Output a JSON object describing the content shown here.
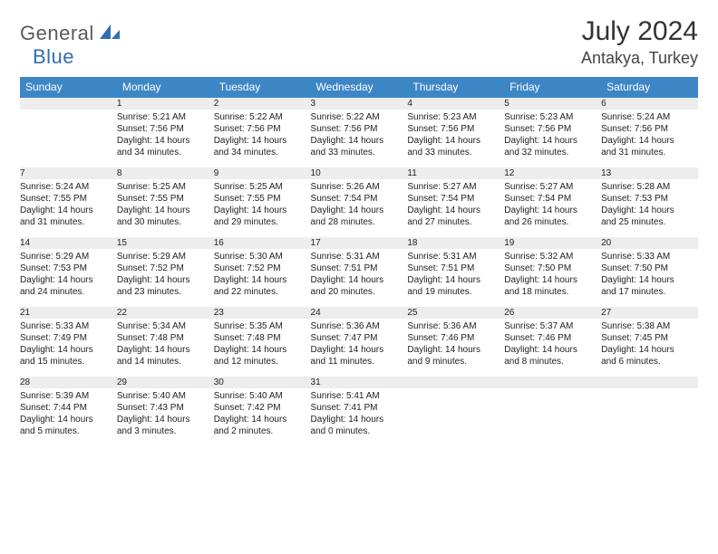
{
  "brand": {
    "general": "General",
    "blue": "Blue"
  },
  "header": {
    "month_title": "July 2024",
    "location": "Antakya, Turkey"
  },
  "colors": {
    "header_bg": "#3d86c6",
    "header_text": "#ffffff",
    "daynum_bg": "#ededed",
    "rule": "#3d86c6",
    "brand_blue": "#2f6fb3",
    "brand_gray": "#5a5a5a"
  },
  "weekdays": [
    "Sunday",
    "Monday",
    "Tuesday",
    "Wednesday",
    "Thursday",
    "Friday",
    "Saturday"
  ],
  "weeks": [
    {
      "nums": [
        "",
        "1",
        "2",
        "3",
        "4",
        "5",
        "6"
      ],
      "cells": [
        {
          "sunrise": "",
          "sunset": "",
          "daylight1": "",
          "daylight2": ""
        },
        {
          "sunrise": "Sunrise: 5:21 AM",
          "sunset": "Sunset: 7:56 PM",
          "daylight1": "Daylight: 14 hours",
          "daylight2": "and 34 minutes."
        },
        {
          "sunrise": "Sunrise: 5:22 AM",
          "sunset": "Sunset: 7:56 PM",
          "daylight1": "Daylight: 14 hours",
          "daylight2": "and 34 minutes."
        },
        {
          "sunrise": "Sunrise: 5:22 AM",
          "sunset": "Sunset: 7:56 PM",
          "daylight1": "Daylight: 14 hours",
          "daylight2": "and 33 minutes."
        },
        {
          "sunrise": "Sunrise: 5:23 AM",
          "sunset": "Sunset: 7:56 PM",
          "daylight1": "Daylight: 14 hours",
          "daylight2": "and 33 minutes."
        },
        {
          "sunrise": "Sunrise: 5:23 AM",
          "sunset": "Sunset: 7:56 PM",
          "daylight1": "Daylight: 14 hours",
          "daylight2": "and 32 minutes."
        },
        {
          "sunrise": "Sunrise: 5:24 AM",
          "sunset": "Sunset: 7:56 PM",
          "daylight1": "Daylight: 14 hours",
          "daylight2": "and 31 minutes."
        }
      ]
    },
    {
      "nums": [
        "7",
        "8",
        "9",
        "10",
        "11",
        "12",
        "13"
      ],
      "cells": [
        {
          "sunrise": "Sunrise: 5:24 AM",
          "sunset": "Sunset: 7:55 PM",
          "daylight1": "Daylight: 14 hours",
          "daylight2": "and 31 minutes."
        },
        {
          "sunrise": "Sunrise: 5:25 AM",
          "sunset": "Sunset: 7:55 PM",
          "daylight1": "Daylight: 14 hours",
          "daylight2": "and 30 minutes."
        },
        {
          "sunrise": "Sunrise: 5:25 AM",
          "sunset": "Sunset: 7:55 PM",
          "daylight1": "Daylight: 14 hours",
          "daylight2": "and 29 minutes."
        },
        {
          "sunrise": "Sunrise: 5:26 AM",
          "sunset": "Sunset: 7:54 PM",
          "daylight1": "Daylight: 14 hours",
          "daylight2": "and 28 minutes."
        },
        {
          "sunrise": "Sunrise: 5:27 AM",
          "sunset": "Sunset: 7:54 PM",
          "daylight1": "Daylight: 14 hours",
          "daylight2": "and 27 minutes."
        },
        {
          "sunrise": "Sunrise: 5:27 AM",
          "sunset": "Sunset: 7:54 PM",
          "daylight1": "Daylight: 14 hours",
          "daylight2": "and 26 minutes."
        },
        {
          "sunrise": "Sunrise: 5:28 AM",
          "sunset": "Sunset: 7:53 PM",
          "daylight1": "Daylight: 14 hours",
          "daylight2": "and 25 minutes."
        }
      ]
    },
    {
      "nums": [
        "14",
        "15",
        "16",
        "17",
        "18",
        "19",
        "20"
      ],
      "cells": [
        {
          "sunrise": "Sunrise: 5:29 AM",
          "sunset": "Sunset: 7:53 PM",
          "daylight1": "Daylight: 14 hours",
          "daylight2": "and 24 minutes."
        },
        {
          "sunrise": "Sunrise: 5:29 AM",
          "sunset": "Sunset: 7:52 PM",
          "daylight1": "Daylight: 14 hours",
          "daylight2": "and 23 minutes."
        },
        {
          "sunrise": "Sunrise: 5:30 AM",
          "sunset": "Sunset: 7:52 PM",
          "daylight1": "Daylight: 14 hours",
          "daylight2": "and 22 minutes."
        },
        {
          "sunrise": "Sunrise: 5:31 AM",
          "sunset": "Sunset: 7:51 PM",
          "daylight1": "Daylight: 14 hours",
          "daylight2": "and 20 minutes."
        },
        {
          "sunrise": "Sunrise: 5:31 AM",
          "sunset": "Sunset: 7:51 PM",
          "daylight1": "Daylight: 14 hours",
          "daylight2": "and 19 minutes."
        },
        {
          "sunrise": "Sunrise: 5:32 AM",
          "sunset": "Sunset: 7:50 PM",
          "daylight1": "Daylight: 14 hours",
          "daylight2": "and 18 minutes."
        },
        {
          "sunrise": "Sunrise: 5:33 AM",
          "sunset": "Sunset: 7:50 PM",
          "daylight1": "Daylight: 14 hours",
          "daylight2": "and 17 minutes."
        }
      ]
    },
    {
      "nums": [
        "21",
        "22",
        "23",
        "24",
        "25",
        "26",
        "27"
      ],
      "cells": [
        {
          "sunrise": "Sunrise: 5:33 AM",
          "sunset": "Sunset: 7:49 PM",
          "daylight1": "Daylight: 14 hours",
          "daylight2": "and 15 minutes."
        },
        {
          "sunrise": "Sunrise: 5:34 AM",
          "sunset": "Sunset: 7:48 PM",
          "daylight1": "Daylight: 14 hours",
          "daylight2": "and 14 minutes."
        },
        {
          "sunrise": "Sunrise: 5:35 AM",
          "sunset": "Sunset: 7:48 PM",
          "daylight1": "Daylight: 14 hours",
          "daylight2": "and 12 minutes."
        },
        {
          "sunrise": "Sunrise: 5:36 AM",
          "sunset": "Sunset: 7:47 PM",
          "daylight1": "Daylight: 14 hours",
          "daylight2": "and 11 minutes."
        },
        {
          "sunrise": "Sunrise: 5:36 AM",
          "sunset": "Sunset: 7:46 PM",
          "daylight1": "Daylight: 14 hours",
          "daylight2": "and 9 minutes."
        },
        {
          "sunrise": "Sunrise: 5:37 AM",
          "sunset": "Sunset: 7:46 PM",
          "daylight1": "Daylight: 14 hours",
          "daylight2": "and 8 minutes."
        },
        {
          "sunrise": "Sunrise: 5:38 AM",
          "sunset": "Sunset: 7:45 PM",
          "daylight1": "Daylight: 14 hours",
          "daylight2": "and 6 minutes."
        }
      ]
    },
    {
      "nums": [
        "28",
        "29",
        "30",
        "31",
        "",
        "",
        ""
      ],
      "cells": [
        {
          "sunrise": "Sunrise: 5:39 AM",
          "sunset": "Sunset: 7:44 PM",
          "daylight1": "Daylight: 14 hours",
          "daylight2": "and 5 minutes."
        },
        {
          "sunrise": "Sunrise: 5:40 AM",
          "sunset": "Sunset: 7:43 PM",
          "daylight1": "Daylight: 14 hours",
          "daylight2": "and 3 minutes."
        },
        {
          "sunrise": "Sunrise: 5:40 AM",
          "sunset": "Sunset: 7:42 PM",
          "daylight1": "Daylight: 14 hours",
          "daylight2": "and 2 minutes."
        },
        {
          "sunrise": "Sunrise: 5:41 AM",
          "sunset": "Sunset: 7:41 PM",
          "daylight1": "Daylight: 14 hours",
          "daylight2": "and 0 minutes."
        },
        {
          "sunrise": "",
          "sunset": "",
          "daylight1": "",
          "daylight2": ""
        },
        {
          "sunrise": "",
          "sunset": "",
          "daylight1": "",
          "daylight2": ""
        },
        {
          "sunrise": "",
          "sunset": "",
          "daylight1": "",
          "daylight2": ""
        }
      ]
    }
  ]
}
